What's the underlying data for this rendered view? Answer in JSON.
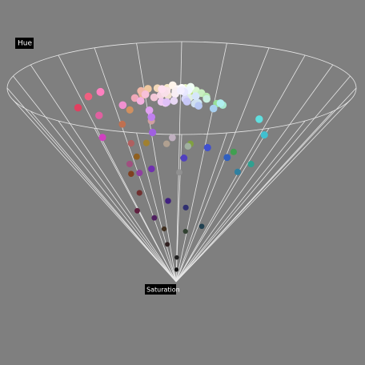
{
  "chart_data": {
    "type": "cone3d",
    "labels": {
      "hue": "Hue",
      "saturation": "Saturation"
    },
    "points": [
      "#ffffff",
      "#fdf6f6",
      "#f8eef4",
      "#f4f0ff",
      "#eef6ff",
      "#f0fff4",
      "#fff4ea",
      "#faf0f0",
      "#f5f5ff",
      "#ffffff",
      "#fbe4ea",
      "#f6d6e2",
      "#f3c9d8",
      "#f9dfe9",
      "#e8d8f4",
      "#d8d8f8",
      "#d6e6fb",
      "#cfe6f0",
      "#c9f0e0",
      "#d8f5d0",
      "#c8f0c0",
      "#b8eab0",
      "#e8f5c8",
      "#f6e8c8",
      "#f4d8b8",
      "#f0c8a0",
      "#e8b890",
      "#f2b8a8",
      "#f0a8b8",
      "#f8c0d8",
      "#f4b0e0",
      "#f0c8f4",
      "#e0c0f8",
      "#c8c8f8",
      "#b8c8f4",
      "#a8d0f0",
      "#b0f0f0",
      "#a8e8d0",
      "#98e098",
      "#c0e080",
      "#e0b870",
      "#d09060",
      "#c07050",
      "#b06060",
      "#a05080",
      "#9040a0",
      "#7030b0",
      "#5040c0",
      "#4050d0",
      "#3060c0",
      "#3080a0",
      "#30a090",
      "#40a050",
      "#80a040",
      "#a08030",
      "#906020",
      "#804020",
      "#703030",
      "#602040",
      "#502060",
      "#402080",
      "#303070",
      "#204050",
      "#304030",
      "#403020",
      "#302020",
      "#202020",
      "#101010",
      "#e060a0",
      "#d040c0",
      "#c080f0",
      "#a060e0",
      "#ff80c0",
      "#f090d0",
      "#e0a0f0",
      "#60e0e0",
      "#40c0d0",
      "#e04060",
      "#f06080",
      "#d0a0a0",
      "#b0a090",
      "#a0b0a0",
      "#909090",
      "#c0b0c0",
      "#f0e0d0",
      "#e0f0e0",
      "#d0e0f0",
      "#f0d0f0",
      "#ffe0f0",
      "#e8e8ff"
    ]
  }
}
